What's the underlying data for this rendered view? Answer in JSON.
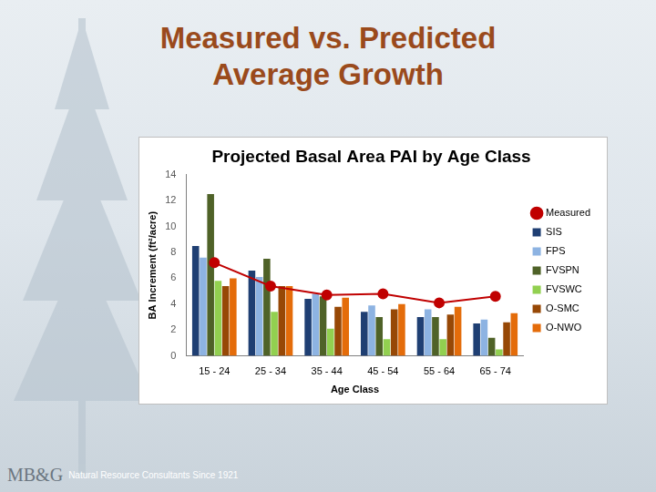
{
  "slide": {
    "title": "Measured vs. Predicted Average Growth",
    "logo": "MB&G",
    "footer": "Natural Resource Consultants Since 1921"
  },
  "chart_data": {
    "type": "bar",
    "title": "Projected Basal Area PAI by Age Class",
    "x_label": "Age Class",
    "y_label": "BA Increment (ft²/acre)",
    "categories": [
      "15 - 24",
      "25 - 34",
      "35 - 44",
      "45 - 54",
      "55 - 64",
      "65 - 74"
    ],
    "series": [
      {
        "name": "SIS",
        "color": "#1f3f73",
        "values": [
          8.5,
          6.6,
          4.4,
          3.4,
          3.0,
          2.5
        ]
      },
      {
        "name": "FPS",
        "color": "#8db3e2",
        "values": [
          7.6,
          6.1,
          4.8,
          3.9,
          3.6,
          2.8
        ]
      },
      {
        "name": "FVSPN",
        "color": "#4f6228",
        "values": [
          12.5,
          7.5,
          4.6,
          3.0,
          3.0,
          1.4
        ]
      },
      {
        "name": "FVSWC",
        "color": "#92d050",
        "values": [
          5.8,
          3.4,
          2.1,
          1.3,
          1.3,
          0.5
        ]
      },
      {
        "name": "O-SMC",
        "color": "#974806",
        "values": [
          5.4,
          5.4,
          3.8,
          3.6,
          3.2,
          2.6
        ]
      },
      {
        "name": "O-NWO",
        "color": "#e46c0a",
        "values": [
          6.0,
          5.4,
          4.5,
          4.0,
          3.8,
          3.3
        ]
      },
      {
        "name": "Measured",
        "type": "line",
        "color": "#c00000",
        "marker": "circle",
        "values": [
          7.2,
          5.4,
          4.7,
          4.8,
          4.1,
          4.6
        ]
      }
    ],
    "ylim": [
      0,
      14
    ],
    "yticks": [
      0,
      2,
      4,
      6,
      8,
      10,
      12,
      14
    ],
    "grid": false,
    "legend": "right"
  }
}
